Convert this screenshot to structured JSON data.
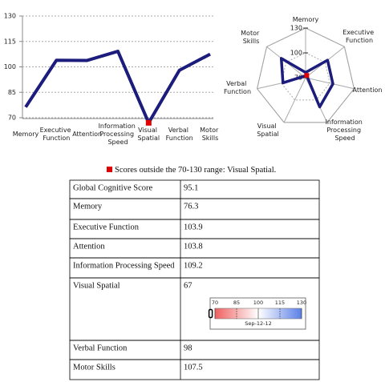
{
  "chart_data": [
    {
      "type": "line",
      "categories": [
        "Memory",
        "Executive Function",
        "Attention",
        "Information Processing Speed",
        "Visual Spatial",
        "Verbal Function",
        "Motor Skills"
      ],
      "values": [
        76.3,
        103.9,
        103.8,
        109.2,
        67,
        98,
        107.5
      ],
      "color": "#1c1c7c",
      "outlier_color": "#e00000",
      "ylim": [
        70,
        130
      ],
      "yticks": [
        70,
        85,
        100,
        115,
        130
      ],
      "grid": true
    },
    {
      "type": "radar",
      "categories": [
        "Memory",
        "Executive Function",
        "Attention",
        "Information Processing Speed",
        "Visual Spatial",
        "Verbal Function",
        "Motor Skills"
      ],
      "values": [
        76.3,
        103.9,
        103.8,
        109.2,
        67,
        98,
        107.5
      ],
      "color": "#1c1c7c",
      "outlier_color": "#e00000",
      "rlim": [
        70,
        130
      ],
      "rticks": [
        70,
        100,
        130
      ]
    }
  ],
  "note": "Scores outside the 70-130 range: Visual Spatial.",
  "table": {
    "rows": [
      [
        "Global Cognitive Score",
        95.1
      ],
      [
        "Memory",
        76.3
      ],
      [
        "Executive Function",
        103.9
      ],
      [
        "Attention",
        103.8
      ],
      [
        "Information Processing Speed",
        109.2
      ],
      [
        "Visual Spatial",
        67
      ],
      [
        "Verbal Function",
        98
      ],
      [
        "Motor Skills",
        107.5
      ]
    ]
  },
  "gauge": {
    "xlim": [
      70,
      130
    ],
    "xticks": [
      70,
      85,
      100,
      115,
      130
    ],
    "date": "Sep-12-12"
  }
}
